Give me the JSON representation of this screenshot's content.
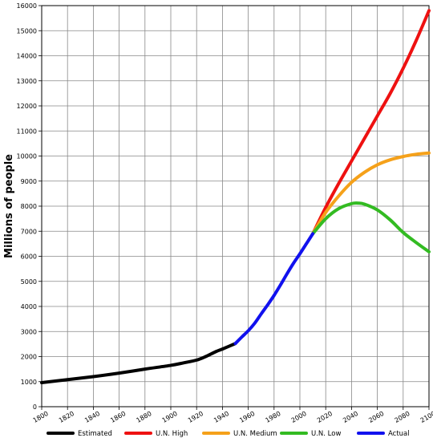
{
  "chart_data": {
    "type": "line",
    "title": "",
    "xlabel": "",
    "ylabel": "Millions of people",
    "xlim": [
      1800,
      2100
    ],
    "ylim": [
      0,
      16000
    ],
    "grid": true,
    "legend_position": "bottom",
    "x_ticks": [
      "1800",
      "1820",
      "1840",
      "1860",
      "1880",
      "1900",
      "1920",
      "1940",
      "1960",
      "1980",
      "2000",
      "2020",
      "2040",
      "2060",
      "2080",
      "2100"
    ],
    "y_ticks": [
      "0",
      "1000",
      "2000",
      "3000",
      "4000",
      "5000",
      "6000",
      "7000",
      "8000",
      "9000",
      "10000",
      "11000",
      "12000",
      "13000",
      "14000",
      "15000",
      "16000"
    ],
    "series": [
      {
        "name": "Estimated",
        "color": "#000000",
        "x": [
          1800,
          1820,
          1840,
          1860,
          1880,
          1900,
          1910,
          1920,
          1927,
          1935,
          1940,
          1950
        ],
        "y": [
          960,
          1080,
          1200,
          1340,
          1500,
          1650,
          1750,
          1860,
          2000,
          2200,
          2300,
          2520
        ]
      },
      {
        "name": "U.N. High",
        "color": "#ee1111",
        "x": [
          2010,
          2020,
          2030,
          2040,
          2050,
          2060,
          2070,
          2080,
          2090,
          2100
        ],
        "y": [
          6900,
          7950,
          8900,
          9800,
          10700,
          11600,
          12500,
          13500,
          14600,
          15800
        ]
      },
      {
        "name": "U.N. Medium",
        "color": "#f5a11a",
        "x": [
          2010,
          2020,
          2030,
          2040,
          2050,
          2060,
          2070,
          2080,
          2090,
          2100
        ],
        "y": [
          6900,
          7750,
          8400,
          8950,
          9350,
          9650,
          9850,
          9980,
          10070,
          10120
        ]
      },
      {
        "name": "U.N. Low",
        "color": "#33bb22",
        "x": [
          2010,
          2020,
          2030,
          2040,
          2045,
          2050,
          2060,
          2070,
          2080,
          2090,
          2100
        ],
        "y": [
          6900,
          7500,
          7900,
          8100,
          8120,
          8080,
          7850,
          7450,
          6950,
          6550,
          6180
        ]
      },
      {
        "name": "Actual",
        "color": "#1111ee",
        "x": [
          1950,
          1955,
          1960,
          1965,
          1970,
          1975,
          1980,
          1985,
          1990,
          1995,
          2000,
          2005,
          2010
        ],
        "y": [
          2520,
          2780,
          3030,
          3330,
          3700,
          4060,
          4440,
          4860,
          5300,
          5720,
          6100,
          6500,
          6900
        ]
      }
    ]
  }
}
